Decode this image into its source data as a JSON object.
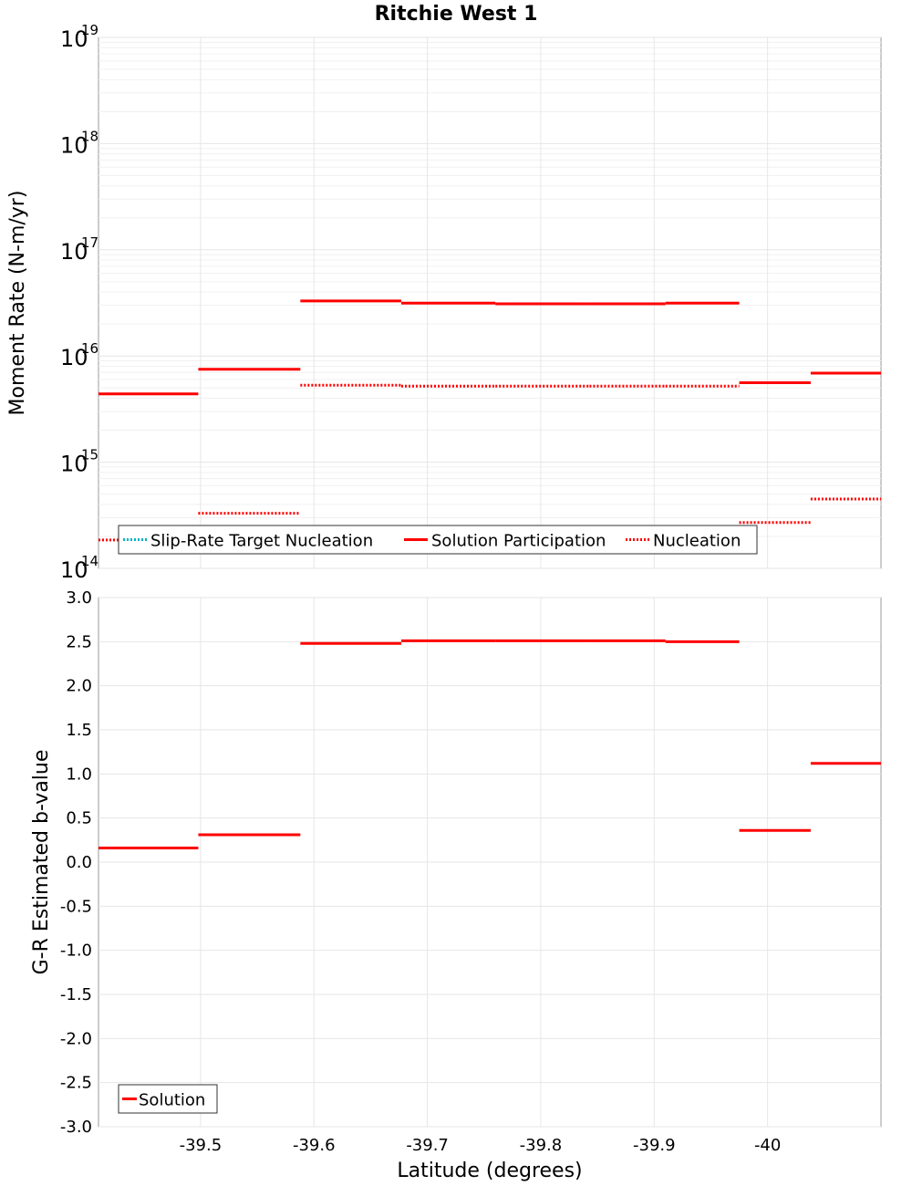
{
  "chart_data": [
    {
      "type": "line",
      "title": "Ritchie West 1",
      "xlabel": "Latitude (degrees)",
      "ylabel": "Moment Rate (N-m/yr)",
      "yscale": "log",
      "ylim": [
        100000000000000.0,
        1e+19
      ],
      "xlim": [
        -39.41,
        -40.1
      ],
      "grid": true,
      "y_ticks": [
        {
          "base": "10",
          "exp": "14",
          "value": 100000000000000.0
        },
        {
          "base": "10",
          "exp": "15",
          "value": 1000000000000000.0
        },
        {
          "base": "10",
          "exp": "16",
          "value": 1e+16
        },
        {
          "base": "10",
          "exp": "17",
          "value": 1e+17
        },
        {
          "base": "10",
          "exp": "18",
          "value": 1e+18
        },
        {
          "base": "10",
          "exp": "19",
          "value": 1e+19
        }
      ],
      "legend": {
        "placement": "bottom-left",
        "entries": [
          {
            "label": "Slip-Rate Target Nucleation",
            "color": "#00b4c8",
            "style": "dotted"
          },
          {
            "label": "Solution Participation",
            "color": "#ff0000",
            "style": "solid"
          },
          {
            "label": "Nucleation",
            "color": "#ff0000",
            "style": "dotted"
          }
        ]
      },
      "series": [
        {
          "name": "Slip-Rate Target Nucleation",
          "color": "#00b4c8",
          "style": "dotted",
          "segments": []
        },
        {
          "name": "Solution Participation",
          "color": "#ff0000",
          "style": "solid",
          "segments": [
            {
              "x0": -39.41,
              "x1": -39.498,
              "y": 4400000000000000.0
            },
            {
              "x0": -39.498,
              "x1": -39.588,
              "y": 7500000000000000.0
            },
            {
              "x0": -39.588,
              "x1": -39.677,
              "y": 3.3e+16
            },
            {
              "x0": -39.677,
              "x1": -39.76,
              "y": 3.15e+16
            },
            {
              "x0": -39.76,
              "x1": -39.843,
              "y": 3.1e+16
            },
            {
              "x0": -39.843,
              "x1": -39.91,
              "y": 3.1e+16
            },
            {
              "x0": -39.91,
              "x1": -39.975,
              "y": 3.15e+16
            },
            {
              "x0": -39.975,
              "x1": -40.038,
              "y": 5600000000000000.0
            },
            {
              "x0": -40.038,
              "x1": -40.1,
              "y": 6900000000000000.0
            }
          ]
        },
        {
          "name": "Nucleation",
          "color": "#ff0000",
          "style": "dotted",
          "segments": [
            {
              "x0": -39.41,
              "x1": -39.498,
              "y": 185000000000000.0
            },
            {
              "x0": -39.498,
              "x1": -39.588,
              "y": 330000000000000.0
            },
            {
              "x0": -39.588,
              "x1": -39.677,
              "y": 5300000000000000.0
            },
            {
              "x0": -39.677,
              "x1": -39.76,
              "y": 5200000000000000.0
            },
            {
              "x0": -39.76,
              "x1": -39.843,
              "y": 5200000000000000.0
            },
            {
              "x0": -39.843,
              "x1": -39.91,
              "y": 5200000000000000.0
            },
            {
              "x0": -39.91,
              "x1": -39.975,
              "y": 5200000000000000.0
            },
            {
              "x0": -39.975,
              "x1": -40.038,
              "y": 270000000000000.0
            },
            {
              "x0": -40.038,
              "x1": -40.1,
              "y": 450000000000000.0
            }
          ]
        }
      ]
    },
    {
      "type": "line",
      "xlabel": "Latitude (degrees)",
      "ylabel": "G-R Estimated b-value",
      "ylim": [
        -3.0,
        3.0
      ],
      "xlim": [
        -39.41,
        -40.1
      ],
      "grid": true,
      "y_tick_labels": [
        "3.0",
        "2.5",
        "2.0",
        "1.5",
        "1.0",
        "0.5",
        "0.0",
        "-0.5",
        "-1.0",
        "-1.5",
        "-2.0",
        "-2.5",
        "-3.0"
      ],
      "x_tick_labels": [
        "-39.5",
        "-39.6",
        "-39.7",
        "-39.8",
        "-39.9",
        "-40"
      ],
      "legend": {
        "placement": "bottom-left",
        "entries": [
          {
            "label": "Solution",
            "color": "#ff0000",
            "style": "solid"
          }
        ]
      },
      "series": [
        {
          "name": "Solution",
          "color": "#ff0000",
          "style": "solid",
          "segments": [
            {
              "x0": -39.41,
              "x1": -39.498,
              "y": 0.16
            },
            {
              "x0": -39.498,
              "x1": -39.588,
              "y": 0.31
            },
            {
              "x0": -39.588,
              "x1": -39.677,
              "y": 2.48
            },
            {
              "x0": -39.677,
              "x1": -39.76,
              "y": 2.51
            },
            {
              "x0": -39.76,
              "x1": -39.843,
              "y": 2.51
            },
            {
              "x0": -39.843,
              "x1": -39.91,
              "y": 2.51
            },
            {
              "x0": -39.91,
              "x1": -39.975,
              "y": 2.5
            },
            {
              "x0": -39.975,
              "x1": -40.038,
              "y": 0.36
            },
            {
              "x0": -40.038,
              "x1": -40.1,
              "y": 1.12
            }
          ]
        }
      ]
    }
  ]
}
